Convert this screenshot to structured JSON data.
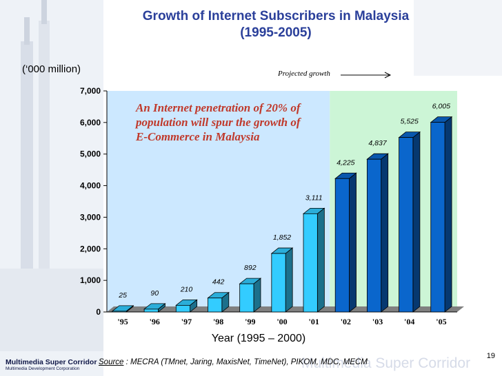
{
  "title_line1": "Growth of Internet Subscribers in Malaysia",
  "title_line2": "(1995-2005)",
  "units_label": "(‘000 million)",
  "projected_label": "Projected growth",
  "annotation_lines": [
    "An Internet penetration of 20% of",
    "population will spur the growth of",
    "E-Commerce in Malaysia"
  ],
  "xlabel": "Year (1995 – 2000)",
  "source_key": "Source",
  "source_text": " :  MECRA (TMnet, Jaring, MaxisNet, TimeNet), PIKOM, MDC, MECM",
  "page_number": "19",
  "logo_line1": "Multimedia Super Corridor",
  "logo_line2": "Multimedia Development Corporation",
  "watermark": "Multimedia Super Corridor",
  "colors": {
    "title": "#2a3f9a",
    "historical_bar": "#33ccff",
    "projected_bar": "#0a66cc",
    "plot_bg_historical": "#cce8ff",
    "plot_bg_projected": "#ccf5d6",
    "floor": "#808080",
    "annotation": "#c0392b"
  },
  "chart_data": {
    "type": "bar",
    "categories": [
      "'95",
      "'96",
      "'97",
      "'98",
      "'99",
      "'00",
      "'01",
      "'02",
      "'03",
      "'04",
      "'05"
    ],
    "values": [
      25,
      90,
      210,
      442,
      892,
      1852,
      3111,
      4225,
      4837,
      5525,
      6005
    ],
    "value_labels": [
      "25",
      "90",
      "210",
      "442",
      "892",
      "1,852",
      "3,111",
      "4,225",
      "4,837",
      "5,525",
      "6,005"
    ],
    "projected_from_index": 7,
    "ylim": [
      0,
      7000
    ],
    "yticks": [
      0,
      1000,
      2000,
      3000,
      4000,
      5000,
      6000,
      7000
    ],
    "ytick_labels": [
      "0",
      "1,000",
      "2,000",
      "3,000",
      "4,000",
      "5,000",
      "6,000",
      "7,000"
    ],
    "ylabel": "(‘000 million)",
    "xlabel": "Year (1995 – 2000)",
    "title": "Growth of Internet Subscribers in Malaysia (1995-2005)",
    "grid": false,
    "legend": "none"
  }
}
